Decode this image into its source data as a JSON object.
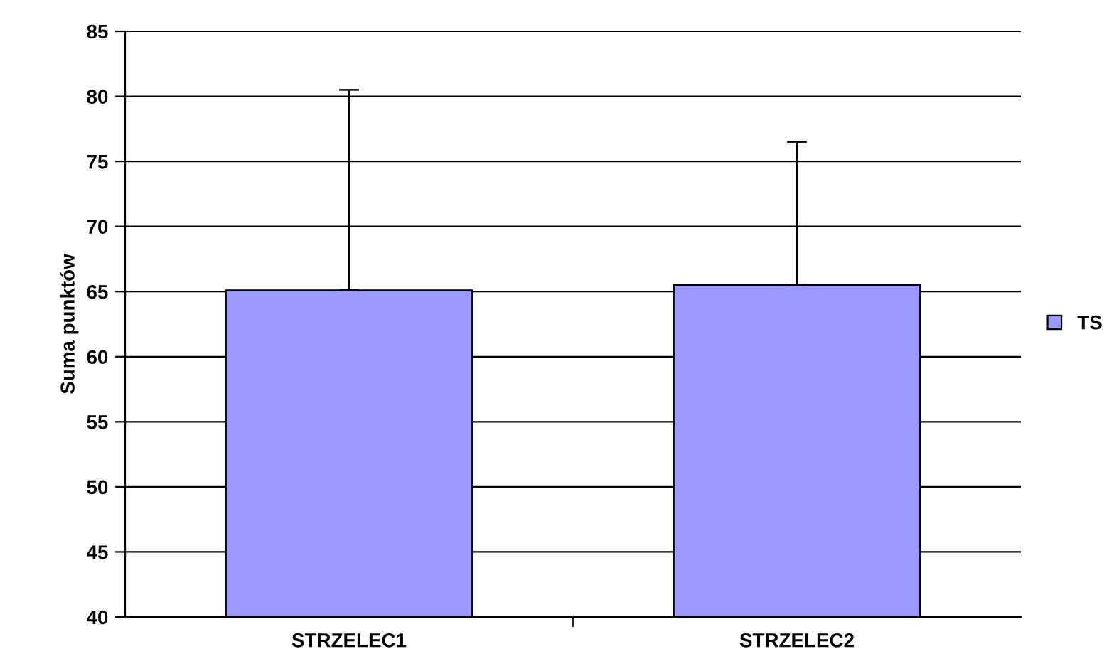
{
  "chart_data": {
    "type": "bar",
    "ylabel": "Suma punktów",
    "categories": [
      "STRZELEC1",
      "STRZELEC2"
    ],
    "series": [
      {
        "name": "TS",
        "color": "#9999ff",
        "values": [
          65.1,
          65.5
        ],
        "errors": [
          [
            65.1,
            80.5
          ],
          [
            65.5,
            76.5
          ]
        ]
      }
    ],
    "ylim": [
      40,
      85
    ],
    "yticks": [
      40,
      45,
      50,
      55,
      60,
      65,
      70,
      75,
      80,
      85
    ],
    "grid": "y",
    "legend": "right"
  }
}
